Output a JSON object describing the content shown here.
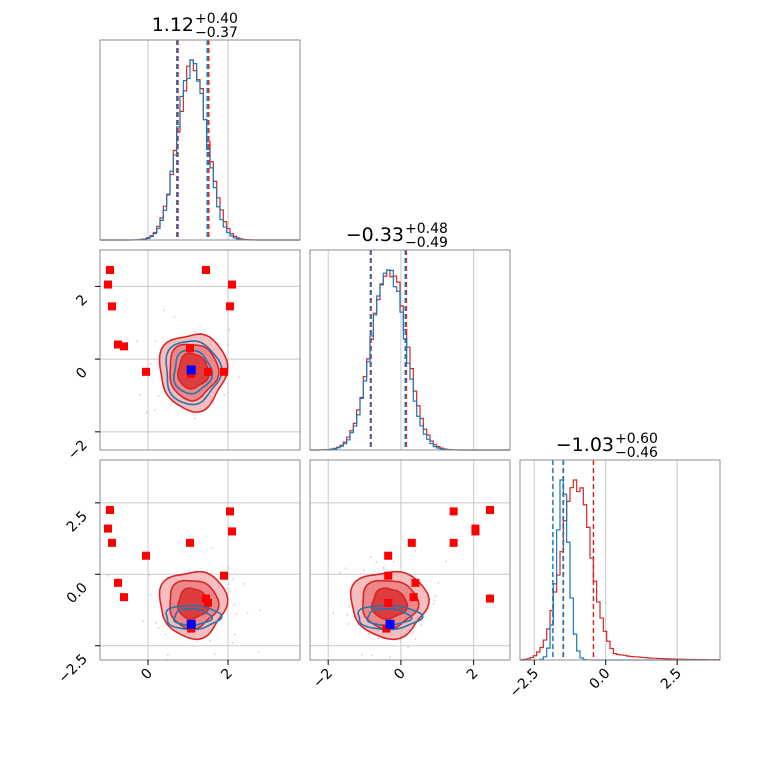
{
  "chart_data": {
    "type": "corner",
    "grid": true,
    "parameters": [
      {
        "title_value": "1.12",
        "title_plus": "+0.40",
        "title_minus": "−0.37",
        "range": [
          -1.2,
          3.8
        ],
        "ticks": [
          0,
          2
        ],
        "tick_labels": [
          "0",
          "2"
        ]
      },
      {
        "title_value": "−0.33",
        "title_plus": "+0.48",
        "title_minus": "−0.49",
        "range": [
          -2.5,
          3.0
        ],
        "ticks": [
          -2,
          0,
          2
        ],
        "tick_labels": [
          "−2",
          "0",
          "2"
        ]
      },
      {
        "title_value": "−1.03",
        "title_plus": "+0.60",
        "title_minus": "−0.46",
        "range": [
          -3.0,
          4.0
        ],
        "ticks": [
          -2.5,
          0,
          2.5
        ],
        "tick_labels": [
          "−2.5",
          "0.0",
          "2.5"
        ]
      }
    ],
    "series": [
      {
        "color": "#d62728",
        "centers": [
          1.12,
          -0.33,
          -1.03
        ],
        "sigmas": [
          0.38,
          0.48,
          0.53
        ],
        "quantile_lines": [
          [
            0.75,
            1.52
          ],
          [
            -0.82,
            0.15
          ],
          [
            -1.49,
            -0.43
          ]
        ],
        "has_tail": [
          false,
          false,
          true
        ]
      },
      {
        "color": "#1f77b4",
        "centers": [
          1.1,
          -0.35,
          -1.5
        ],
        "sigmas": [
          0.36,
          0.46,
          0.22
        ],
        "quantile_lines": [
          [
            0.72,
            1.48
          ],
          [
            -0.84,
            0.12
          ],
          [
            -1.85,
            -1.48
          ]
        ],
        "has_tail": [
          false,
          false,
          false
        ]
      }
    ],
    "truth_markers": {
      "red": [
        [
          -0.95,
          2.45,
          2.25
        ],
        [
          -1.0,
          2.05,
          1.6
        ],
        [
          -0.9,
          1.45,
          1.1
        ],
        [
          -0.75,
          0.4,
          -0.3
        ],
        [
          -0.6,
          0.35,
          -0.8
        ],
        [
          -0.05,
          -0.35,
          0.65
        ],
        [
          1.08,
          -0.4,
          -1.9
        ],
        [
          1.5,
          -0.35,
          -1.0
        ],
        [
          1.05,
          0.3,
          1.1
        ],
        [
          1.9,
          -0.35,
          -0.05
        ],
        [
          2.1,
          2.05,
          1.5
        ],
        [
          2.05,
          1.45,
          2.2
        ],
        [
          1.45,
          2.45,
          -0.85
        ]
      ],
      "blue": [
        [
          1.08,
          -0.3,
          -1.75
        ]
      ]
    }
  }
}
